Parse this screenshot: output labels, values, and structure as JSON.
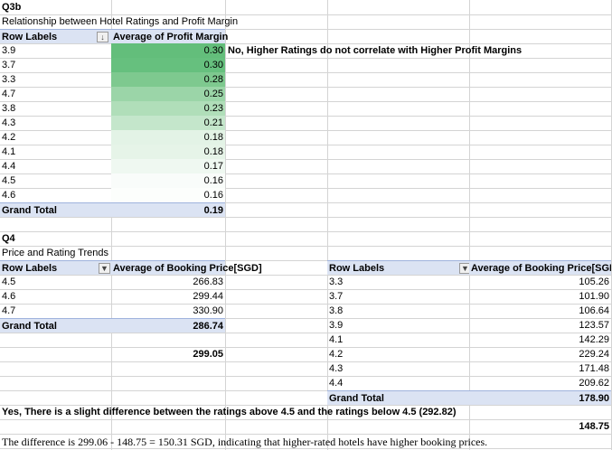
{
  "q3b": {
    "title": "Q3b",
    "subtitle": "Relationship between Hotel Ratings and Profit Margin",
    "header_row_labels": "Row Labels",
    "header_value": "Average of Profit Margin",
    "sort_icon": "sort-descending-icon",
    "rows": [
      {
        "label": "3.9",
        "value": "0.30",
        "color": "#63be7b"
      },
      {
        "label": "3.7",
        "value": "0.30",
        "color": "#66c07e"
      },
      {
        "label": "3.3",
        "value": "0.28",
        "color": "#7ec98f"
      },
      {
        "label": "4.7",
        "value": "0.25",
        "color": "#9bd5a8"
      },
      {
        "label": "3.8",
        "value": "0.23",
        "color": "#b0deb9"
      },
      {
        "label": "4.3",
        "value": "0.21",
        "color": "#c4e6cb"
      },
      {
        "label": "4.2",
        "value": "0.18",
        "color": "#e3f3e6"
      },
      {
        "label": "4.1",
        "value": "0.18",
        "color": "#e6f4e8"
      },
      {
        "label": "4.4",
        "value": "0.17",
        "color": "#eff8f1"
      },
      {
        "label": "4.5",
        "value": "0.16",
        "color": "#f9fcfa"
      },
      {
        "label": "4.6",
        "value": "0.16",
        "color": "#fcfefc"
      }
    ],
    "total_label": "Grand Total",
    "total_value": "0.19",
    "note": "No, Higher Ratings do not correlate with Higher Profit Margins"
  },
  "q4": {
    "title": "Q4",
    "subtitle": "Price and Rating Trends",
    "filter_icon": "filter-icon",
    "left": {
      "header_row_labels": "Row Labels",
      "header_value": "Average of Booking Price[SGD]",
      "rows": [
        {
          "label": "4.5",
          "value": "266.83"
        },
        {
          "label": "4.6",
          "value": "299.44"
        },
        {
          "label": "4.7",
          "value": "330.90"
        }
      ],
      "total_label": "Grand Total",
      "total_value": "286.74",
      "extra_value": "299.05"
    },
    "right": {
      "header_row_labels": "Row Labels",
      "header_value": "Average of Booking Price[SGD",
      "rows": [
        {
          "label": "3.3",
          "value": "105.26"
        },
        {
          "label": "3.7",
          "value": "101.90"
        },
        {
          "label": "3.8",
          "value": "106.64"
        },
        {
          "label": "3.9",
          "value": "123.57"
        },
        {
          "label": "4.1",
          "value": "142.29"
        },
        {
          "label": "4.2",
          "value": "229.24"
        },
        {
          "label": "4.3",
          "value": "171.48"
        },
        {
          "label": "4.4",
          "value": "209.62"
        }
      ],
      "total_label": "Grand Total",
      "total_value": "178.90",
      "extra_value": "148.75"
    },
    "note1": "Yes, There is a slight difference between the ratings above 4.5 and the ratings below 4.5 (292.82)",
    "note2": "The difference is 299.06 - 148.75 = 150.31 SGD, indicating that higher-rated hotels have higher booking prices."
  }
}
